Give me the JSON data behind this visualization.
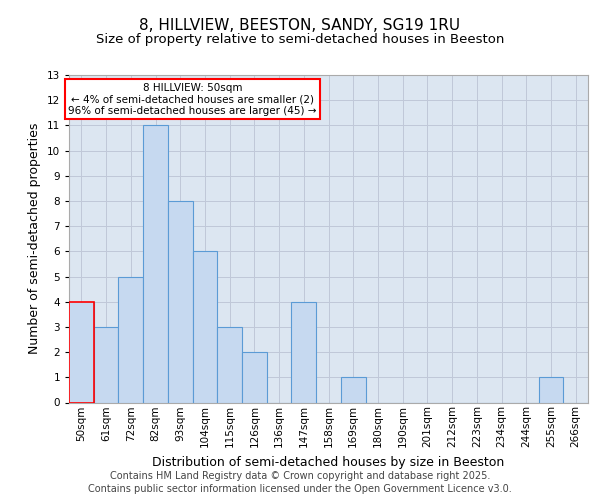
{
  "title": "8, HILLVIEW, BEESTON, SANDY, SG19 1RU",
  "subtitle": "Size of property relative to semi-detached houses in Beeston",
  "xlabel": "Distribution of semi-detached houses by size in Beeston",
  "ylabel": "Number of semi-detached properties",
  "categories": [
    "50sqm",
    "61sqm",
    "72sqm",
    "82sqm",
    "93sqm",
    "104sqm",
    "115sqm",
    "126sqm",
    "136sqm",
    "147sqm",
    "158sqm",
    "169sqm",
    "180sqm",
    "190sqm",
    "201sqm",
    "212sqm",
    "223sqm",
    "234sqm",
    "244sqm",
    "255sqm",
    "266sqm"
  ],
  "values": [
    4,
    3,
    5,
    11,
    8,
    6,
    3,
    2,
    0,
    4,
    0,
    1,
    0,
    0,
    0,
    0,
    0,
    0,
    0,
    1,
    0
  ],
  "bar_color": "#c6d9f0",
  "bar_edgecolor": "#5b9bd5",
  "highlight_index": 0,
  "highlight_bar_edgecolor": "#ff0000",
  "grid_color": "#c0c8d8",
  "background_color": "#dce6f1",
  "annotation_text": "8 HILLVIEW: 50sqm\n← 4% of semi-detached houses are smaller (2)\n96% of semi-detached houses are larger (45) →",
  "annotation_box_edgecolor": "#ff0000",
  "annotation_box_facecolor": "#ffffff",
  "ylim": [
    0,
    13
  ],
  "yticks": [
    0,
    1,
    2,
    3,
    4,
    5,
    6,
    7,
    8,
    9,
    10,
    11,
    12,
    13
  ],
  "footer_line1": "Contains HM Land Registry data © Crown copyright and database right 2025.",
  "footer_line2": "Contains public sector information licensed under the Open Government Licence v3.0.",
  "title_fontsize": 11,
  "subtitle_fontsize": 9.5,
  "axis_label_fontsize": 9,
  "tick_fontsize": 7.5,
  "footer_fontsize": 7
}
